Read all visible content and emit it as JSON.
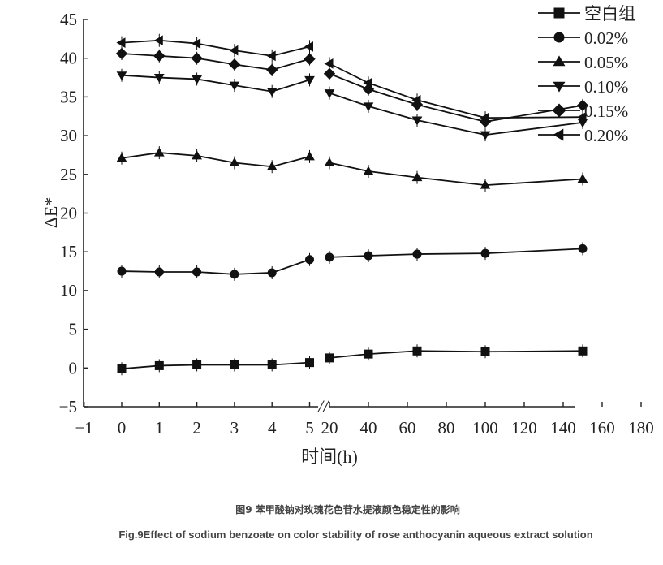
{
  "chart_data": {
    "type": "line",
    "ylabel": "ΔE*",
    "xlabel": "时间(h)",
    "ylim": [
      -5,
      45
    ],
    "yticks": [
      -5,
      0,
      5,
      10,
      15,
      20,
      25,
      30,
      35,
      40,
      45
    ],
    "xticks_left": [
      "−1",
      "0",
      "1",
      "2",
      "3",
      "4",
      "5"
    ],
    "xticks_right": [
      "20",
      "40",
      "60",
      "80",
      "100",
      "120",
      "140",
      "160",
      "180"
    ],
    "axis_break": "//",
    "legend_position": "top-right",
    "x_left": [
      0,
      1,
      2,
      3,
      4,
      5
    ],
    "x_right": [
      20,
      40,
      65,
      100,
      150
    ],
    "series": [
      {
        "name": "空白组",
        "marker": "square",
        "left": [
          -0.1,
          0.3,
          0.4,
          0.4,
          0.4,
          0.7
        ],
        "right": [
          1.3,
          1.8,
          2.2,
          2.1,
          2.2
        ]
      },
      {
        "name": "0.02%",
        "marker": "circle",
        "left": [
          12.5,
          12.4,
          12.4,
          12.1,
          12.3,
          14.0
        ],
        "right": [
          14.3,
          14.5,
          14.7,
          14.8,
          15.4
        ]
      },
      {
        "name": "0.05%",
        "marker": "triangle-up",
        "left": [
          27.1,
          27.8,
          27.4,
          26.5,
          26.0,
          27.3
        ],
        "right": [
          26.5,
          25.4,
          24.6,
          23.6,
          24.4
        ]
      },
      {
        "name": "0.10%",
        "marker": "triangle-down",
        "left": [
          37.8,
          37.5,
          37.3,
          36.5,
          35.7,
          37.2
        ],
        "right": [
          35.5,
          33.8,
          32.0,
          30.1,
          31.7
        ]
      },
      {
        "name": "0.15%",
        "marker": "diamond",
        "left": [
          40.6,
          40.3,
          40.0,
          39.2,
          38.5,
          39.9
        ],
        "right": [
          38.0,
          36.0,
          34.0,
          31.8,
          33.9
        ]
      },
      {
        "name": "0.20%",
        "marker": "triangle-left",
        "left": [
          42.0,
          42.3,
          41.9,
          41.0,
          40.3,
          41.5
        ],
        "right": [
          39.3,
          36.8,
          34.6,
          32.3,
          32.4
        ]
      }
    ]
  },
  "caption": {
    "cn": "图9 苯甲酸钠对玫瑰花色苷水提液颜色稳定性的影响",
    "en": "Fig.9Effect of sodium benzoate on color stability of rose anthocyanin aqueous extract solution"
  }
}
